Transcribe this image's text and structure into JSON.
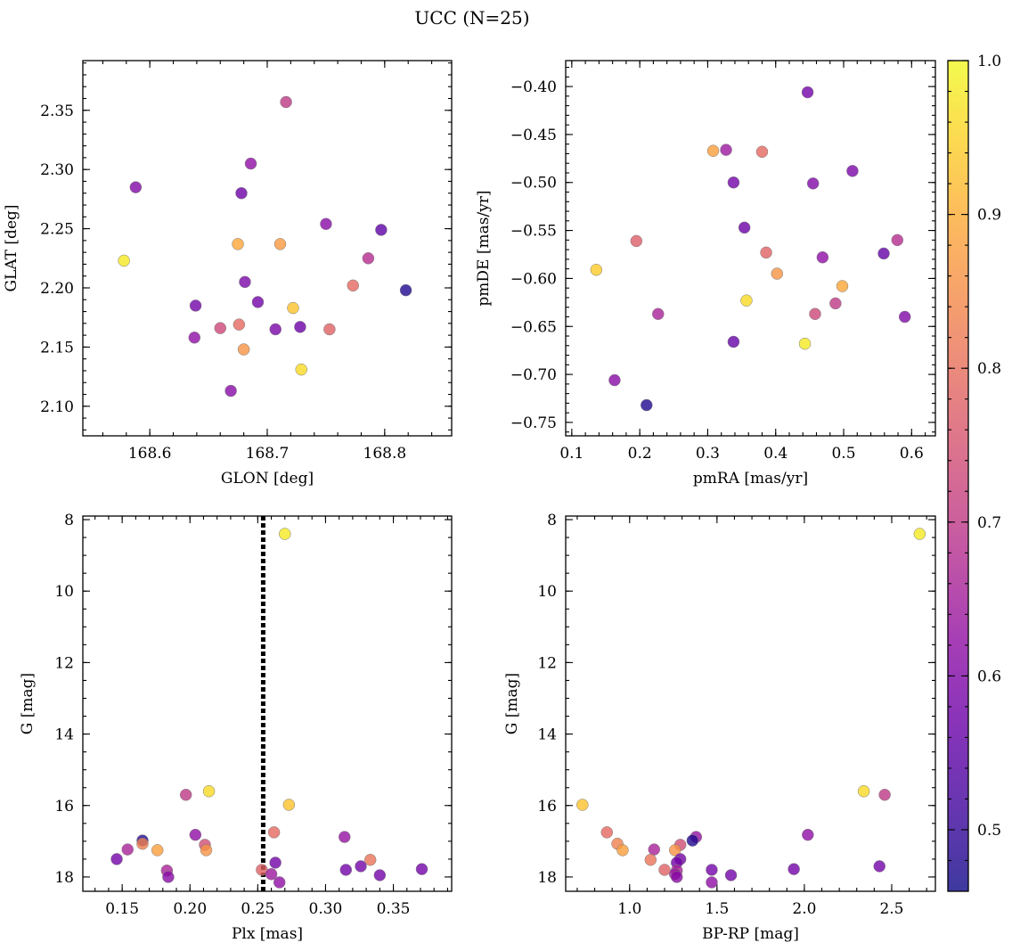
{
  "figure_title": "UCC (N=25)",
  "colors": {
    "plasma_stops": [
      "#0d0887",
      "#41049d",
      "#6a00a8",
      "#8f0da4",
      "#b12a90",
      "#cc4778",
      "#e16462",
      "#f2844b",
      "#fca636",
      "#fcce25",
      "#f0f921"
    ],
    "point_alpha": 0.8,
    "point_edge": "#7a7a7a"
  },
  "colorbar": {
    "cmap": "plasma",
    "range": [
      0.46,
      1.0
    ],
    "ticks": [
      "0.5",
      "0.6",
      "0.7",
      "0.8",
      "0.9",
      "1.0"
    ]
  },
  "chart_data": [
    {
      "type": "scatter",
      "id": "glon-glat",
      "xlabel": "GLON [deg]",
      "ylabel": "GLAT [deg]",
      "xlim": [
        168.543,
        168.857
      ],
      "ylim": [
        2.075,
        2.392
      ],
      "invert_y": false,
      "xticks": [
        168.6,
        168.7,
        168.8
      ],
      "xtick_labels": [
        "168.6",
        "168.7",
        "168.8"
      ],
      "yticks": [
        2.1,
        2.15,
        2.2,
        2.25,
        2.3,
        2.35
      ],
      "ytick_labels": [
        "2.10",
        "2.15",
        "2.20",
        "2.25",
        "2.30",
        "2.35"
      ],
      "x_minor_step": 0.02,
      "y_minor_step": 0.01,
      "points": [
        {
          "x": 168.588,
          "y": 2.285,
          "c": 0.6
        },
        {
          "x": 168.578,
          "y": 2.223,
          "c": 0.98
        },
        {
          "x": 168.716,
          "y": 2.357,
          "c": 0.7
        },
        {
          "x": 168.686,
          "y": 2.305,
          "c": 0.62
        },
        {
          "x": 168.678,
          "y": 2.28,
          "c": 0.57
        },
        {
          "x": 168.675,
          "y": 2.237,
          "c": 0.89
        },
        {
          "x": 168.711,
          "y": 2.237,
          "c": 0.87
        },
        {
          "x": 168.75,
          "y": 2.254,
          "c": 0.61
        },
        {
          "x": 168.797,
          "y": 2.249,
          "c": 0.55
        },
        {
          "x": 168.786,
          "y": 2.225,
          "c": 0.68
        },
        {
          "x": 168.773,
          "y": 2.202,
          "c": 0.79
        },
        {
          "x": 168.818,
          "y": 2.198,
          "c": 0.48
        },
        {
          "x": 168.681,
          "y": 2.205,
          "c": 0.59
        },
        {
          "x": 168.639,
          "y": 2.185,
          "c": 0.58
        },
        {
          "x": 168.692,
          "y": 2.188,
          "c": 0.58
        },
        {
          "x": 168.722,
          "y": 2.183,
          "c": 0.93
        },
        {
          "x": 168.66,
          "y": 2.166,
          "c": 0.73
        },
        {
          "x": 168.676,
          "y": 2.169,
          "c": 0.79
        },
        {
          "x": 168.707,
          "y": 2.165,
          "c": 0.59
        },
        {
          "x": 168.728,
          "y": 2.167,
          "c": 0.57
        },
        {
          "x": 168.753,
          "y": 2.165,
          "c": 0.78
        },
        {
          "x": 168.638,
          "y": 2.158,
          "c": 0.62
        },
        {
          "x": 168.68,
          "y": 2.148,
          "c": 0.86
        },
        {
          "x": 168.729,
          "y": 2.131,
          "c": 0.96
        },
        {
          "x": 168.669,
          "y": 2.113,
          "c": 0.61
        }
      ]
    },
    {
      "type": "scatter",
      "id": "pmra-pmde",
      "xlabel": "pmRA [mas/yr]",
      "ylabel": "pmDE [mas/yr]",
      "xlim": [
        0.091,
        0.635
      ],
      "ylim": [
        -0.764,
        -0.373
      ],
      "invert_y": false,
      "xticks": [
        0.1,
        0.2,
        0.3,
        0.4,
        0.5,
        0.6
      ],
      "xtick_labels": [
        "0.1",
        "0.2",
        "0.3",
        "0.4",
        "0.5",
        "0.6"
      ],
      "yticks": [
        -0.4,
        -0.45,
        -0.5,
        -0.55,
        -0.6,
        -0.65,
        -0.7,
        -0.75
      ],
      "ytick_labels": [
        "−0.40",
        "−0.45",
        "−0.50",
        "−0.55",
        "−0.60",
        "−0.65",
        "−0.70",
        "−0.75"
      ],
      "x_minor_step": 0.02,
      "y_minor_step": 0.01,
      "points": [
        {
          "x": 0.447,
          "y": -0.406,
          "c": 0.58
        },
        {
          "x": 0.308,
          "y": -0.467,
          "c": 0.88
        },
        {
          "x": 0.327,
          "y": -0.466,
          "c": 0.64
        },
        {
          "x": 0.38,
          "y": -0.468,
          "c": 0.79
        },
        {
          "x": 0.513,
          "y": -0.488,
          "c": 0.59
        },
        {
          "x": 0.338,
          "y": -0.5,
          "c": 0.58
        },
        {
          "x": 0.455,
          "y": -0.501,
          "c": 0.6
        },
        {
          "x": 0.354,
          "y": -0.547,
          "c": 0.57
        },
        {
          "x": 0.195,
          "y": -0.561,
          "c": 0.77
        },
        {
          "x": 0.579,
          "y": -0.56,
          "c": 0.68
        },
        {
          "x": 0.386,
          "y": -0.573,
          "c": 0.78
        },
        {
          "x": 0.559,
          "y": -0.574,
          "c": 0.56
        },
        {
          "x": 0.469,
          "y": -0.578,
          "c": 0.62
        },
        {
          "x": 0.136,
          "y": -0.591,
          "c": 0.94
        },
        {
          "x": 0.402,
          "y": -0.595,
          "c": 0.86
        },
        {
          "x": 0.498,
          "y": -0.608,
          "c": 0.89
        },
        {
          "x": 0.357,
          "y": -0.623,
          "c": 0.96
        },
        {
          "x": 0.488,
          "y": -0.626,
          "c": 0.7
        },
        {
          "x": 0.227,
          "y": -0.637,
          "c": 0.66
        },
        {
          "x": 0.458,
          "y": -0.637,
          "c": 0.73
        },
        {
          "x": 0.59,
          "y": -0.64,
          "c": 0.6
        },
        {
          "x": 0.338,
          "y": -0.666,
          "c": 0.56
        },
        {
          "x": 0.443,
          "y": -0.668,
          "c": 0.98
        },
        {
          "x": 0.163,
          "y": -0.706,
          "c": 0.61
        },
        {
          "x": 0.21,
          "y": -0.732,
          "c": 0.48
        }
      ]
    },
    {
      "type": "scatter",
      "id": "plx-g",
      "xlabel": "Plx [mas]",
      "ylabel": "G [mag]",
      "xlim": [
        0.121,
        0.393
      ],
      "ylim": [
        18.4,
        7.9
      ],
      "invert_y": true,
      "xticks": [
        0.15,
        0.2,
        0.25,
        0.3,
        0.35
      ],
      "xtick_labels": [
        "0.15",
        "0.20",
        "0.25",
        "0.30",
        "0.35"
      ],
      "yticks": [
        8,
        10,
        12,
        14,
        16,
        18
      ],
      "ytick_labels": [
        "8",
        "10",
        "12",
        "14",
        "16",
        "18"
      ],
      "x_minor_step": 0.01,
      "y_minor_step": 0.5,
      "vline": {
        "x": 0.254,
        "style": "dotted"
      },
      "points": [
        {
          "x": 0.27,
          "y": 8.4,
          "c": 0.98
        },
        {
          "x": 0.214,
          "y": 15.6,
          "c": 0.96
        },
        {
          "x": 0.197,
          "y": 15.7,
          "c": 0.7
        },
        {
          "x": 0.273,
          "y": 15.98,
          "c": 0.93
        },
        {
          "x": 0.262,
          "y": 16.75,
          "c": 0.79
        },
        {
          "x": 0.204,
          "y": 16.82,
          "c": 0.62
        },
        {
          "x": 0.314,
          "y": 16.88,
          "c": 0.63
        },
        {
          "x": 0.165,
          "y": 16.98,
          "c": 0.48
        },
        {
          "x": 0.165,
          "y": 17.07,
          "c": 0.83
        },
        {
          "x": 0.211,
          "y": 17.1,
          "c": 0.74
        },
        {
          "x": 0.154,
          "y": 17.23,
          "c": 0.66
        },
        {
          "x": 0.176,
          "y": 17.25,
          "c": 0.88
        },
        {
          "x": 0.212,
          "y": 17.25,
          "c": 0.86
        },
        {
          "x": 0.146,
          "y": 17.5,
          "c": 0.58
        },
        {
          "x": 0.333,
          "y": 17.52,
          "c": 0.81
        },
        {
          "x": 0.263,
          "y": 17.6,
          "c": 0.58
        },
        {
          "x": 0.326,
          "y": 17.7,
          "c": 0.58
        },
        {
          "x": 0.253,
          "y": 17.8,
          "c": 0.78
        },
        {
          "x": 0.183,
          "y": 17.82,
          "c": 0.66
        },
        {
          "x": 0.315,
          "y": 17.8,
          "c": 0.58
        },
        {
          "x": 0.371,
          "y": 17.78,
          "c": 0.58
        },
        {
          "x": 0.26,
          "y": 17.92,
          "c": 0.64
        },
        {
          "x": 0.34,
          "y": 17.95,
          "c": 0.58
        },
        {
          "x": 0.184,
          "y": 18.0,
          "c": 0.61
        },
        {
          "x": 0.266,
          "y": 18.15,
          "c": 0.62
        }
      ]
    },
    {
      "type": "scatter",
      "id": "bprp-g",
      "xlabel": "BP-RP [mag]",
      "ylabel": "G [mag]",
      "xlim": [
        0.634,
        2.75
      ],
      "ylim": [
        18.4,
        7.9
      ],
      "invert_y": true,
      "xticks": [
        1.0,
        1.5,
        2.0,
        2.5
      ],
      "xtick_labels": [
        "1.0",
        "1.5",
        "2.0",
        "2.5"
      ],
      "yticks": [
        8,
        10,
        12,
        14,
        16,
        18
      ],
      "ytick_labels": [
        "8",
        "10",
        "12",
        "14",
        "16",
        "18"
      ],
      "x_minor_step": 0.1,
      "y_minor_step": 0.5,
      "points": [
        {
          "x": 2.66,
          "y": 8.4,
          "c": 0.98
        },
        {
          "x": 2.34,
          "y": 15.6,
          "c": 0.96
        },
        {
          "x": 2.46,
          "y": 15.7,
          "c": 0.7
        },
        {
          "x": 0.73,
          "y": 15.98,
          "c": 0.93
        },
        {
          "x": 0.87,
          "y": 16.75,
          "c": 0.79
        },
        {
          "x": 2.02,
          "y": 16.82,
          "c": 0.62
        },
        {
          "x": 1.38,
          "y": 16.88,
          "c": 0.63
        },
        {
          "x": 1.36,
          "y": 16.98,
          "c": 0.48
        },
        {
          "x": 0.93,
          "y": 17.07,
          "c": 0.83
        },
        {
          "x": 1.29,
          "y": 17.1,
          "c": 0.74
        },
        {
          "x": 1.14,
          "y": 17.23,
          "c": 0.66
        },
        {
          "x": 0.96,
          "y": 17.25,
          "c": 0.88
        },
        {
          "x": 1.26,
          "y": 17.25,
          "c": 0.86
        },
        {
          "x": 1.29,
          "y": 17.5,
          "c": 0.58
        },
        {
          "x": 1.12,
          "y": 17.52,
          "c": 0.81
        },
        {
          "x": 1.27,
          "y": 17.6,
          "c": 0.58
        },
        {
          "x": 2.43,
          "y": 17.7,
          "c": 0.58
        },
        {
          "x": 1.2,
          "y": 17.8,
          "c": 0.78
        },
        {
          "x": 1.27,
          "y": 17.82,
          "c": 0.66
        },
        {
          "x": 1.47,
          "y": 17.8,
          "c": 0.58
        },
        {
          "x": 1.94,
          "y": 17.78,
          "c": 0.58
        },
        {
          "x": 1.26,
          "y": 17.92,
          "c": 0.64
        },
        {
          "x": 1.58,
          "y": 17.95,
          "c": 0.58
        },
        {
          "x": 1.27,
          "y": 18.0,
          "c": 0.61
        },
        {
          "x": 1.47,
          "y": 18.15,
          "c": 0.62
        }
      ]
    }
  ]
}
